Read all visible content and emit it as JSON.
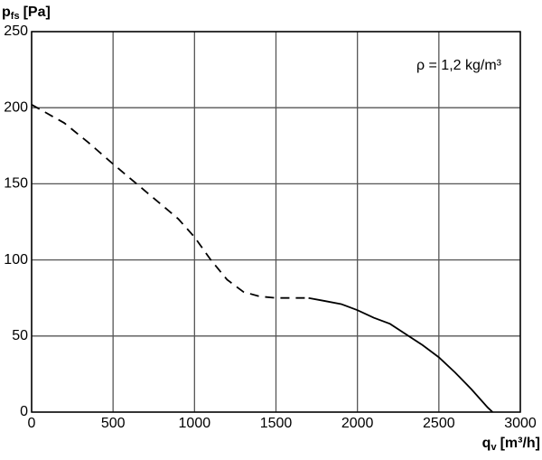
{
  "chart_data": {
    "type": "line",
    "y_label": {
      "main": "p",
      "sub": "fs",
      "unit": "[Pa]"
    },
    "x_label": {
      "main": "q",
      "sub": "v",
      "unit": "[m³/h]"
    },
    "annotation": "ρ = 1,2 kg/m³",
    "series": [
      {
        "color": "#000000",
        "style": "dashed",
        "x": [
          0,
          200,
          350,
          500,
          700,
          900,
          1000,
          1100,
          1200,
          1300,
          1400,
          1500,
          1700
        ],
        "values": [
          202,
          190,
          177,
          163,
          145,
          127,
          115,
          100,
          87,
          79,
          76,
          75,
          75
        ]
      },
      {
        "color": "#000000",
        "style": "solid",
        "x": [
          1700,
          1800,
          1900,
          2000,
          2100,
          2200,
          2300,
          2400,
          2500,
          2600,
          2700,
          2800,
          2830
        ],
        "values": [
          75,
          73,
          71,
          67,
          62,
          58,
          51,
          44,
          36,
          26,
          15,
          3,
          0
        ]
      }
    ],
    "xlim": [
      0,
      3000
    ],
    "xticks": [
      0,
      500,
      1000,
      1500,
      2000,
      2500,
      3000
    ],
    "ylim": [
      0,
      250
    ],
    "yticks": [
      0,
      50,
      100,
      150,
      200,
      250
    ],
    "grid": true
  }
}
